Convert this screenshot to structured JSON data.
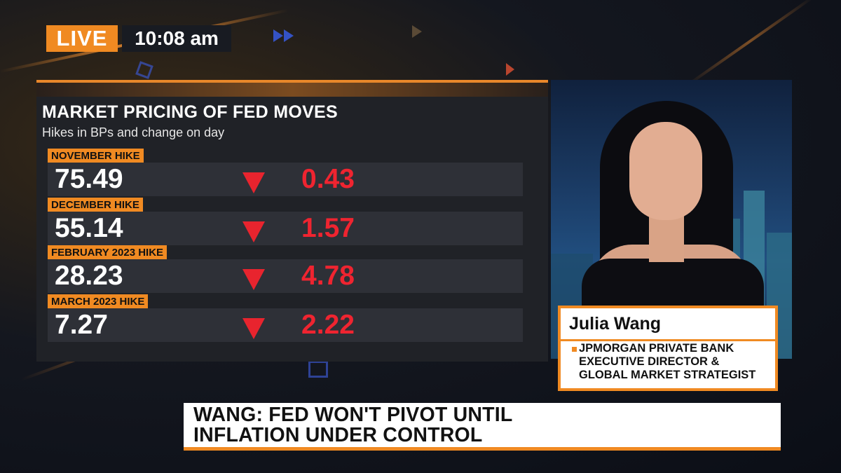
{
  "live_bug": {
    "live_label": "LIVE",
    "time": "10:08 am"
  },
  "chart": {
    "title": "MARKET PRICING OF FED MOVES",
    "subtitle": "Hikes in BPs and change on day",
    "rows": [
      {
        "label": "NOVEMBER HIKE",
        "value": "75.49",
        "direction": "down",
        "change": "0.43"
      },
      {
        "label": "DECEMBER HIKE",
        "value": "55.14",
        "direction": "down",
        "change": "1.57"
      },
      {
        "label": "FEBRUARY 2023 HIKE",
        "value": "28.23",
        "direction": "down",
        "change": "4.78"
      },
      {
        "label": "MARCH 2023 HIKE",
        "value": "7.27",
        "direction": "down",
        "change": "2.22"
      }
    ]
  },
  "guest": {
    "name": "Julia Wang",
    "title_lines": [
      "JPMORGAN PRIVATE BANK",
      "EXECUTIVE DIRECTOR &",
      "GLOBAL MARKET STRATEGIST"
    ]
  },
  "headline": {
    "lines": [
      "WANG: FED WON'T PIVOT UNTIL",
      "INFLATION UNDER CONTROL"
    ]
  },
  "colors": {
    "accent": "#f08a22",
    "negative": "#ef2430",
    "panel_bg": "#202227",
    "row_bg": "#2e3037"
  },
  "icons": {
    "change_down": "down-triangle-icon"
  }
}
